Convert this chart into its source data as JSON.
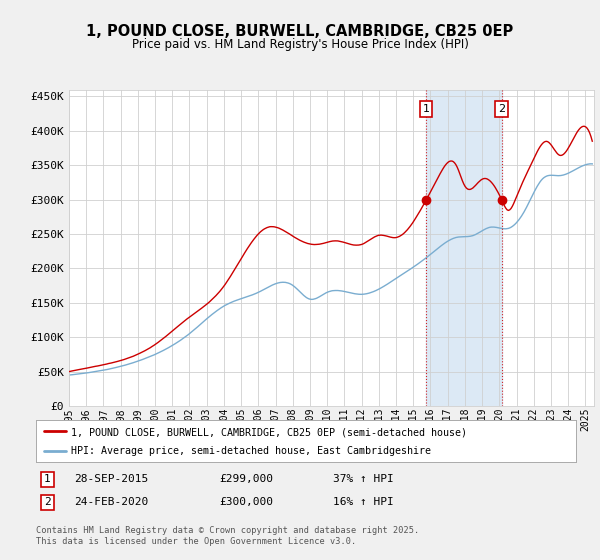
{
  "title": "1, POUND CLOSE, BURWELL, CAMBRIDGE, CB25 0EP",
  "subtitle": "Price paid vs. HM Land Registry's House Price Index (HPI)",
  "ylim": [
    0,
    460000
  ],
  "yticks": [
    0,
    50000,
    100000,
    150000,
    200000,
    250000,
    300000,
    350000,
    400000,
    450000
  ],
  "xlim_start": 1995.0,
  "xlim_end": 2025.5,
  "sale1_date": 2015.74,
  "sale1_price": 299000,
  "sale1_label": "1",
  "sale1_pct": "37% ↑ HPI",
  "sale1_date_str": "28-SEP-2015",
  "sale2_date": 2020.14,
  "sale2_price": 300000,
  "sale2_label": "2",
  "sale2_pct": "16% ↑ HPI",
  "sale2_date_str": "24-FEB-2020",
  "legend_line1": "1, POUND CLOSE, BURWELL, CAMBRIDGE, CB25 0EP (semi-detached house)",
  "legend_line2": "HPI: Average price, semi-detached house, East Cambridgeshire",
  "footer": "Contains HM Land Registry data © Crown copyright and database right 2025.\nThis data is licensed under the Open Government Licence v3.0.",
  "red_color": "#cc0000",
  "blue_color": "#7aadd0",
  "span_color": "#dce9f5",
  "background_color": "#f0f0f0",
  "plot_bg_color": "#ffffff",
  "grid_color": "#d0d0d0"
}
